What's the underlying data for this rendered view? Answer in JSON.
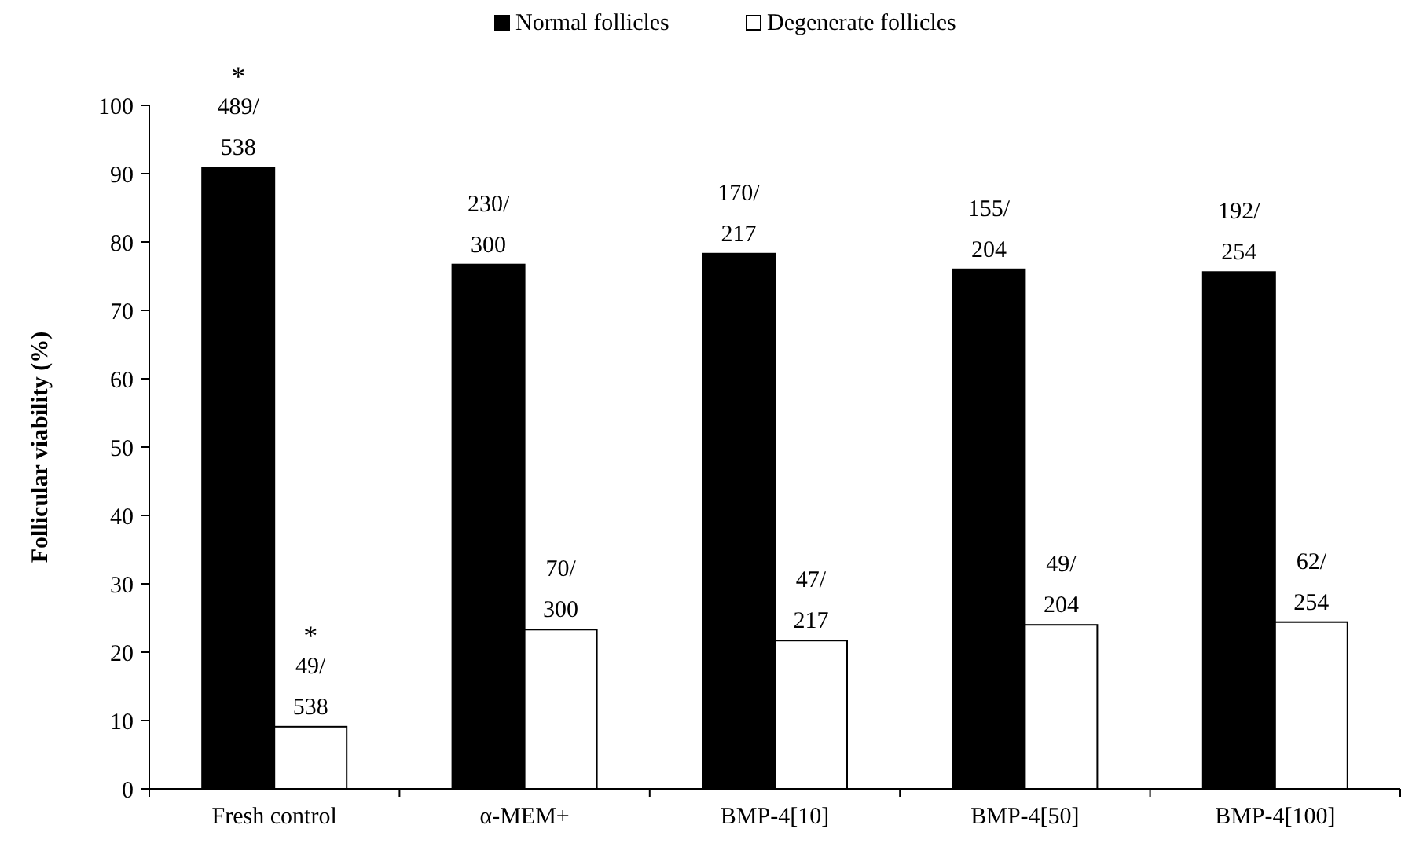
{
  "chart_data": {
    "type": "bar",
    "ylabel": "Follicular viability (%)",
    "categories": [
      "Fresh control",
      "α-MEM+",
      "BMP-4[10]",
      "BMP-4[50]",
      "BMP-4[100]"
    ],
    "series": [
      {
        "name": "Normal follicles",
        "color": "#000000",
        "values": [
          90.9,
          76.7,
          78.3,
          76.0,
          75.6
        ],
        "value_labels": [
          "489/538",
          "230/300",
          "170/217",
          "155/204",
          "192/254"
        ]
      },
      {
        "name": "Degenerate follicles",
        "color": "#ffffff",
        "values": [
          9.1,
          23.3,
          21.7,
          24.0,
          24.4
        ],
        "value_labels": [
          "49/538",
          "70/300",
          "47/217",
          "49/204",
          "62/254"
        ]
      }
    ],
    "ylim": [
      0,
      100
    ],
    "yticks": [
      0,
      10,
      20,
      30,
      40,
      50,
      60,
      70,
      80,
      90,
      100
    ],
    "legend": "top",
    "grid": false,
    "annotations": [
      {
        "text": "*",
        "x": "Fresh control",
        "y": 90.9
      },
      {
        "text": "*",
        "x": "Fresh control",
        "y": 9.1
      }
    ]
  }
}
